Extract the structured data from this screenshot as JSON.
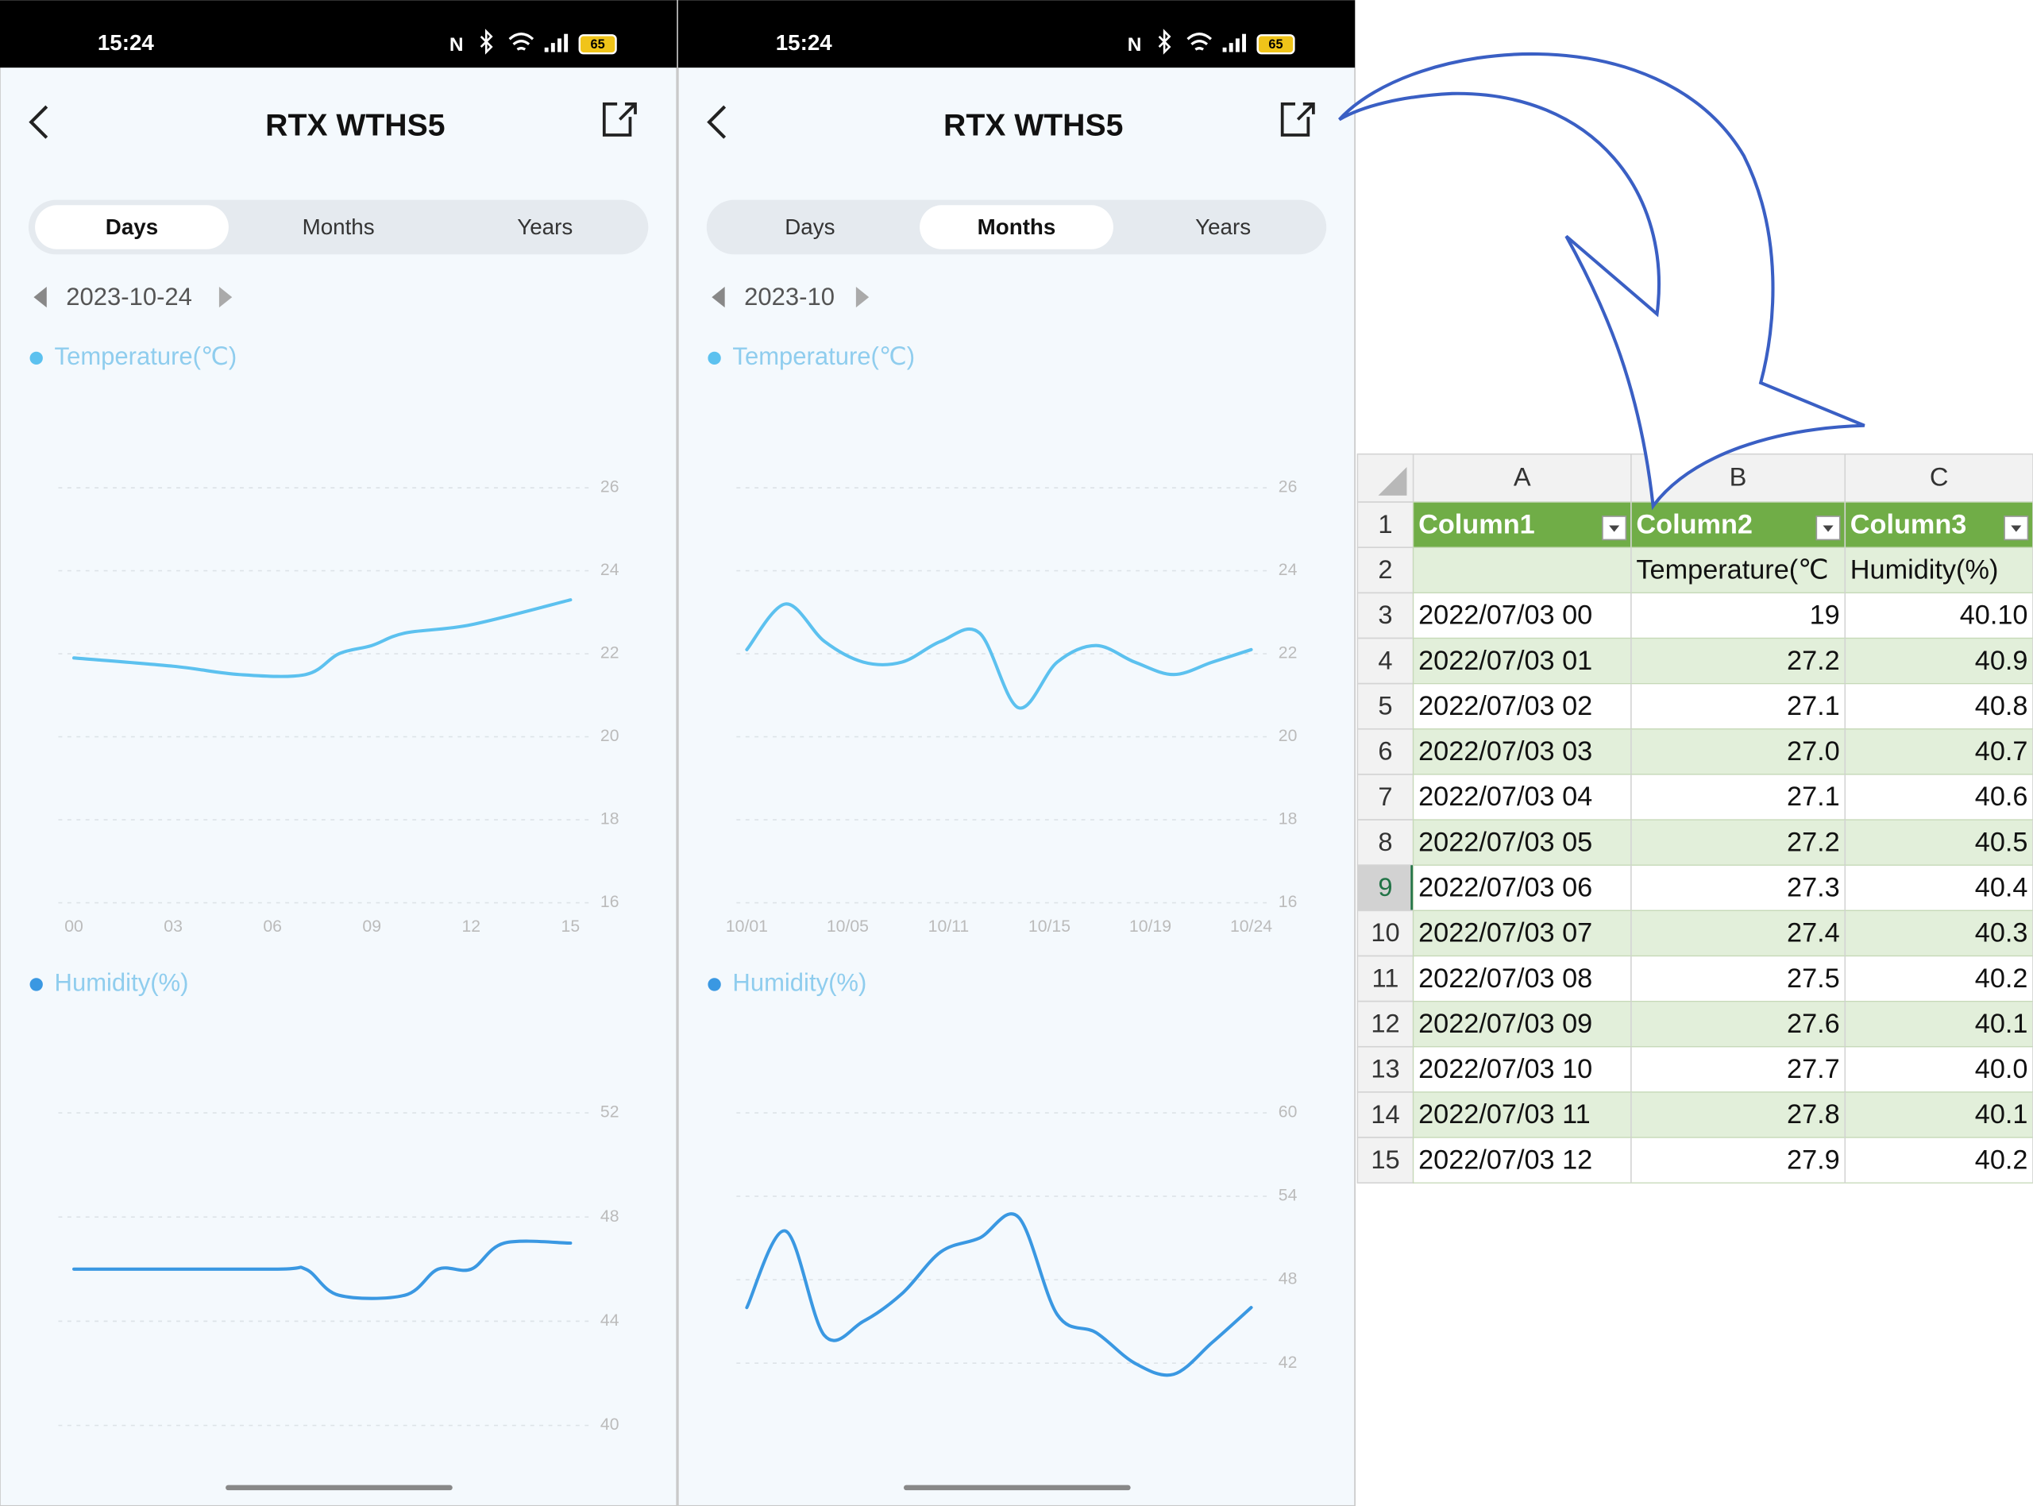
{
  "screens": [
    {
      "time": "15:24",
      "battery": "65",
      "title": "RTX WTHS5",
      "tabs": [
        "Days",
        "Months",
        "Years"
      ],
      "active_tab": 0,
      "date": "2023-10-24",
      "charts": [
        {
          "type": "line",
          "legend": "Temperature(℃)",
          "color": "#5cc1ef",
          "x": [
            0,
            3,
            5,
            7,
            8,
            9,
            10,
            12,
            15
          ],
          "values": [
            21.9,
            21.7,
            21.5,
            21.5,
            22.0,
            22.2,
            22.5,
            22.7,
            23.3
          ],
          "xlim": [
            0,
            15
          ],
          "xticks": [
            {
              "value": 0,
              "label": "00"
            },
            {
              "value": 3,
              "label": "03"
            },
            {
              "value": 6,
              "label": "06"
            },
            {
              "value": 9,
              "label": "09"
            },
            12,
            15
          ],
          "ylim": [
            16,
            26
          ],
          "yticks": [
            16,
            18,
            20,
            22,
            24,
            26
          ]
        },
        {
          "type": "line",
          "legend": "Humidity(%)",
          "color": "#3a98e2",
          "x": [
            0,
            6,
            7,
            8,
            10,
            11,
            12,
            13,
            15
          ],
          "values": [
            46,
            46,
            46,
            45,
            45,
            46,
            46,
            47,
            47
          ],
          "xlim": [
            0,
            15
          ],
          "ylim": [
            40,
            52
          ],
          "yticks": [
            40,
            44,
            48,
            52
          ]
        }
      ]
    },
    {
      "time": "15:24",
      "battery": "65",
      "title": "RTX WTHS5",
      "tabs": [
        "Days",
        "Months",
        "Years"
      ],
      "active_tab": 1,
      "date": "2023-10",
      "charts": [
        {
          "type": "line",
          "legend": "Temperature(℃)",
          "color": "#5cc1ef",
          "xticks": [
            "10/01",
            "10/05",
            "10/11",
            "10/15",
            "10/19",
            "10/24"
          ],
          "values": [
            22.1,
            23.2,
            22.3,
            21.8,
            21.8,
            22.3,
            22.5,
            20.7,
            21.8,
            22.2,
            21.8,
            21.5,
            21.8,
            22.1
          ],
          "ylim": [
            16,
            26
          ],
          "yticks": [
            16,
            18,
            20,
            22,
            24,
            26
          ]
        },
        {
          "type": "line",
          "legend": "Humidity(%)",
          "color": "#3a98e2",
          "values": [
            46.0,
            51.5,
            44.0,
            45.0,
            47.0,
            50.0,
            51.0,
            52.5,
            45.5,
            44.2,
            42.0,
            41.2,
            43.5,
            46.0
          ],
          "ylim": [
            42,
            60
          ],
          "yticks": [
            42,
            48,
            54,
            60
          ]
        }
      ]
    }
  ],
  "table": {
    "columns": [
      "A",
      "B",
      "C"
    ],
    "selected_row": 9,
    "rows": [
      {
        "num": 1,
        "cells": [
          "Column1",
          "Column2",
          "Column3"
        ]
      },
      {
        "num": 2,
        "cells": [
          null,
          "Temperature(℃",
          "Humidity(%)"
        ]
      },
      {
        "num": 3,
        "cells": [
          "2022/07/03 00",
          "19",
          "40.10"
        ]
      },
      {
        "num": 4,
        "cells": [
          "2022/07/03 01",
          "27.2",
          "40.9"
        ]
      },
      {
        "num": 5,
        "cells": [
          "2022/07/03 02",
          "27.1",
          "40.8"
        ]
      },
      {
        "num": 6,
        "cells": [
          "2022/07/03 03",
          "27.0",
          "40.7"
        ]
      },
      {
        "num": 7,
        "cells": [
          "2022/07/03 04",
          "27.1",
          "40.6"
        ]
      },
      {
        "num": 8,
        "cells": [
          "2022/07/03 05",
          "27.2",
          "40.5"
        ]
      },
      {
        "num": 9,
        "cells": [
          "2022/07/03 06",
          "27.3",
          "40.4"
        ]
      },
      {
        "num": 10,
        "cells": [
          "2022/07/03 07",
          "27.4",
          "40.3"
        ]
      },
      {
        "num": 11,
        "cells": [
          "2022/07/03 08",
          "27.5",
          "40.2"
        ]
      },
      {
        "num": 12,
        "cells": [
          "2022/07/03 09",
          "27.6",
          "40.1"
        ]
      },
      {
        "num": 13,
        "cells": [
          "2022/07/03 10",
          "27.7",
          "40.0"
        ]
      },
      {
        "num": 14,
        "cells": [
          "2022/07/03 11",
          "27.8",
          "40.1"
        ]
      },
      {
        "num": 15,
        "cells": [
          "2022/07/03 12",
          "27.9",
          "40.2"
        ]
      }
    ]
  }
}
